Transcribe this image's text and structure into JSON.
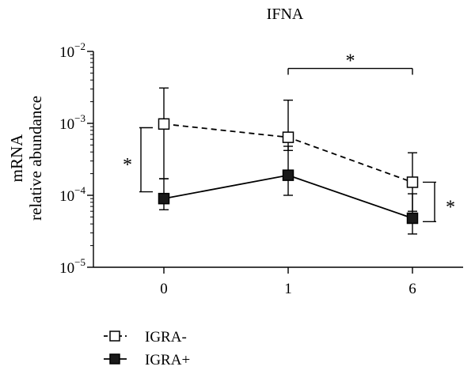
{
  "chart_data": {
    "type": "line",
    "title": "IFNA",
    "xlabel": "",
    "ylabel_lines": [
      "mRNA",
      "relative abundance"
    ],
    "y_scale": "log",
    "ylim": [
      1e-05,
      0.01
    ],
    "y_ticks": [
      {
        "value": 0.01,
        "base": "10",
        "exp": "−2"
      },
      {
        "value": 0.001,
        "base": "10",
        "exp": "−3"
      },
      {
        "value": 0.0001,
        "base": "10",
        "exp": "−4"
      },
      {
        "value": 1e-05,
        "base": "10",
        "exp": "−5"
      }
    ],
    "categories": [
      "0",
      "1",
      "6"
    ],
    "series": [
      {
        "name": "IGRA-",
        "line_style": "dashed",
        "marker": "open-square",
        "values": [
          0.00098,
          0.00064,
          0.000152
        ],
        "err_low": [
          0.00017,
          0.00042,
          6e-05
        ],
        "err_high": [
          0.0031,
          0.0021,
          0.00039
        ]
      },
      {
        "name": "IGRA+",
        "line_style": "solid",
        "marker": "filled-square",
        "values": [
          9e-05,
          0.00019,
          4.8e-05
        ],
        "err_low": [
          6.3e-05,
          0.0001,
          2.9e-05
        ],
        "err_high": [
          0.00017,
          0.00048,
          0.000105
        ]
      }
    ],
    "annotations": [
      {
        "type": "vertical-bracket",
        "text": "*",
        "between": "IGRA- vs IGRA+",
        "at_category": "0",
        "side": "left",
        "y_range": [
          0.000112,
          0.00087
        ]
      },
      {
        "type": "horizontal-bracket",
        "text": "*",
        "from_category": "1",
        "to_category": "6",
        "y": 0.0058
      },
      {
        "type": "vertical-bracket",
        "text": "*",
        "between": "IGRA- vs IGRA+",
        "at_category": "6",
        "side": "right",
        "y_range": [
          4.3e-05,
          0.000152
        ]
      }
    ],
    "legend_position": "bottom-left",
    "grid": false
  }
}
